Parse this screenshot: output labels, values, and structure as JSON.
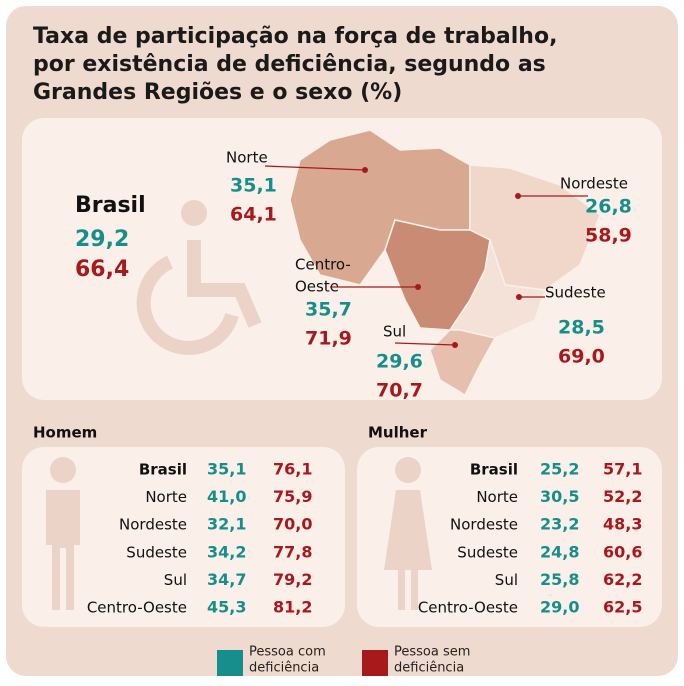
{
  "title": {
    "lines": [
      "Taxa de participação na força de trabalho,",
      "por existência de deficiência, segundo as",
      "Grandes Regiões e o sexo (%)"
    ]
  },
  "map": {
    "brasil": {
      "label": "Brasil",
      "com": "29,2",
      "sem": "66,4"
    },
    "regions": [
      {
        "label_lines": [
          "Norte"
        ],
        "com": "35,1",
        "sem": "64,1"
      },
      {
        "label_lines": [
          "Nordeste"
        ],
        "com": "26,8",
        "sem": "58,9"
      },
      {
        "label_lines": [
          "Centro-",
          "Oeste"
        ],
        "com": "35,7",
        "sem": "71,9"
      },
      {
        "label_lines": [
          "Sudeste"
        ],
        "com": "28,5",
        "sem": "69,0"
      },
      {
        "label_lines": [
          "Sul"
        ],
        "com": "29,6",
        "sem": "70,7"
      }
    ]
  },
  "tables": [
    {
      "title": "Homem",
      "rows": [
        [
          "Brasil",
          "35,1",
          "76,1"
        ],
        [
          "Norte",
          "41,0",
          "75,9"
        ],
        [
          "Nordeste",
          "32,1",
          "70,0"
        ],
        [
          "Sudeste",
          "34,2",
          "77,8"
        ],
        [
          "Sul",
          "34,7",
          "79,2"
        ],
        [
          "Centro-Oeste",
          "45,3",
          "81,2"
        ]
      ]
    },
    {
      "title": "Mulher",
      "rows": [
        [
          "Brasil",
          "25,2",
          "57,1"
        ],
        [
          "Norte",
          "30,5",
          "52,2"
        ],
        [
          "Nordeste",
          "23,2",
          "48,3"
        ],
        [
          "Sudeste",
          "24,8",
          "60,6"
        ],
        [
          "Sul",
          "25,8",
          "62,2"
        ],
        [
          "Centro-Oeste",
          "29,0",
          "62,5"
        ]
      ]
    }
  ],
  "legend": [
    {
      "label_lines": [
        "Pessoa com",
        "deficiência"
      ],
      "color": "#168f8c"
    },
    {
      "label_lines": [
        "Pessoa sem",
        "deficiência"
      ],
      "color": "#a8191c"
    }
  ]
}
